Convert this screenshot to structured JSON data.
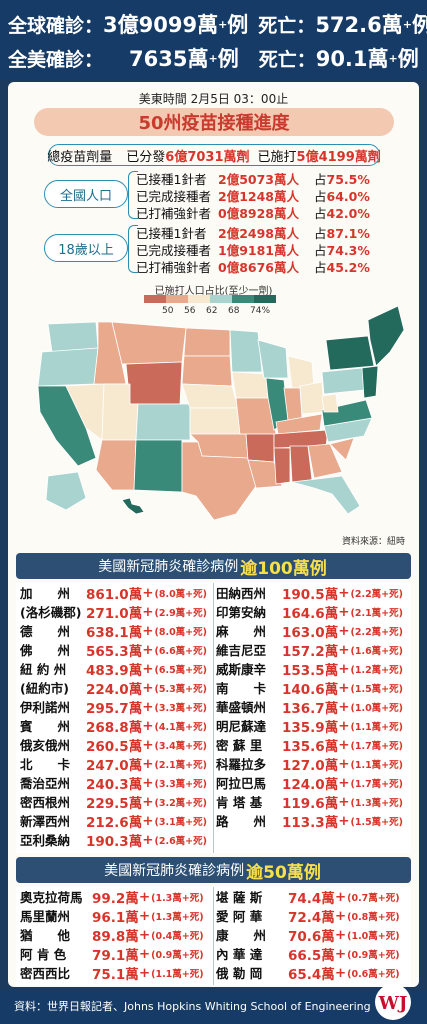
{
  "header": {
    "global_label": "全球確診：",
    "global_cases": "3億9099萬",
    "global_deaths_label": "死亡：",
    "global_deaths": "572.6萬",
    "us_label": "全美確診：",
    "us_cases": "7635萬",
    "us_deaths_label": "死亡：",
    "us_deaths": "90.1萬",
    "plus_suffix": "+例",
    "plus_sup": "+",
    "unit_suffix": "例"
  },
  "time_text": "美東時間  2月5日  03：00止",
  "vaccine_title": "50州疫苗接種進度",
  "total_doses": {
    "prefix": "總疫苗劑量",
    "dist_label": "已分發",
    "dist_value": "6億7031萬劑",
    "admin_label": "已施打",
    "admin_value": "5億4199萬劑"
  },
  "groups": [
    {
      "label": "全國人口",
      "rows": [
        {
          "label": "已接種1針者",
          "value": "2億5073萬人",
          "pct_label": "占",
          "pct": "75.5%"
        },
        {
          "label": "已完成接種者",
          "value": "2億1248萬人",
          "pct_label": "占",
          "pct": "64.0%"
        },
        {
          "label": "已打補強針者",
          "value": "0億8928萬人",
          "pct_label": "占",
          "pct": "42.0%"
        }
      ]
    },
    {
      "label": "18歲以上",
      "rows": [
        {
          "label": "已接種1針者",
          "value": "2億2498萬人",
          "pct_label": "占",
          "pct": "87.1%"
        },
        {
          "label": "已完成接種者",
          "value": "1億9181萬人",
          "pct_label": "占",
          "pct": "74.3%"
        },
        {
          "label": "已打補強針者",
          "value": "0億8676萬人",
          "pct_label": "占",
          "pct": "45.2%"
        }
      ]
    }
  ],
  "legend": {
    "title": "已施打人口占比(至少一劑)",
    "ticks": [
      "50",
      "56",
      "62",
      "68",
      "74%"
    ],
    "colors": [
      "#c96a5a",
      "#e8a98c",
      "#f6e9cf",
      "#a9d3cf",
      "#3a8a7a",
      "#23695c"
    ]
  },
  "map_source": "資料來源：紐時",
  "section1": {
    "pre": "美國新冠肺炎確診病例",
    "hl": "逾100萬例"
  },
  "section2": {
    "pre": "美國新冠肺炎確診病例",
    "hl": "逾50萬例"
  },
  "table1_left": [
    {
      "state": "加　　州",
      "cases": "861.0萬",
      "deaths": "(8.0萬+死)"
    },
    {
      "state": "(洛杉磯郡)",
      "cases": "271.0萬",
      "deaths": "(2.9萬+死)"
    },
    {
      "state": "德　　州",
      "cases": "638.1萬",
      "deaths": "(8.0萬+死)"
    },
    {
      "state": "佛　　州",
      "cases": "565.3萬",
      "deaths": "(6.6萬+死)"
    },
    {
      "state": "紐 約 州",
      "cases": "483.9萬",
      "deaths": "(6.5萬+死)"
    },
    {
      "state": "(紐約市)",
      "cases": "224.0萬",
      "deaths": "(5.3萬+死)"
    },
    {
      "state": "伊利諾州",
      "cases": "295.7萬",
      "deaths": "(3.3萬+死)"
    },
    {
      "state": "賓　　州",
      "cases": "268.8萬",
      "deaths": "(4.1萬+死)"
    },
    {
      "state": "俄亥俄州",
      "cases": "260.5萬",
      "deaths": "(3.4萬+死)"
    },
    {
      "state": "北　　卡",
      "cases": "247.0萬",
      "deaths": "(2.1萬+死)"
    },
    {
      "state": "喬治亞州",
      "cases": "240.3萬",
      "deaths": "(3.3萬+死)"
    },
    {
      "state": "密西根州",
      "cases": "229.5萬",
      "deaths": "(3.2萬+死)"
    },
    {
      "state": "新澤西州",
      "cases": "212.6萬",
      "deaths": "(3.1萬+死)"
    },
    {
      "state": "亞利桑納",
      "cases": "190.3萬",
      "deaths": "(2.6萬+死)"
    }
  ],
  "table1_right": [
    {
      "state": "田納西州",
      "cases": "190.5萬",
      "deaths": "(2.2萬+死)"
    },
    {
      "state": "印第安納",
      "cases": "164.6萬",
      "deaths": "(2.1萬+死)"
    },
    {
      "state": "麻　　州",
      "cases": "163.0萬",
      "deaths": "(2.2萬+死)"
    },
    {
      "state": "維吉尼亞",
      "cases": "157.2萬",
      "deaths": "(1.6萬+死)"
    },
    {
      "state": "威斯康辛",
      "cases": "153.5萬",
      "deaths": "(1.2萬+死)"
    },
    {
      "state": "南　　卡",
      "cases": "140.6萬",
      "deaths": "(1.5萬+死)"
    },
    {
      "state": "華盛頓州",
      "cases": "136.7萬",
      "deaths": "(1.0萬+死)"
    },
    {
      "state": "明尼蘇達",
      "cases": "135.9萬",
      "deaths": "(1.1萬+死)"
    },
    {
      "state": "密 蘇 里",
      "cases": "135.6萬",
      "deaths": "(1.7萬+死)"
    },
    {
      "state": "科羅拉多",
      "cases": "127.0萬",
      "deaths": "(1.1萬+死)"
    },
    {
      "state": "阿拉巴馬",
      "cases": "124.0萬",
      "deaths": "(1.7萬+死)"
    },
    {
      "state": "肯 塔 基",
      "cases": "119.6萬",
      "deaths": "(1.3萬+死)"
    },
    {
      "state": "路　　州",
      "cases": "113.3萬",
      "deaths": "(1.5萬+死)"
    }
  ],
  "table2_left": [
    {
      "state": "奧克拉荷馬",
      "cases": "99.2萬",
      "deaths": "(1.3萬+死)"
    },
    {
      "state": "馬里蘭州",
      "cases": "96.1萬",
      "deaths": "(1.3萬+死)"
    },
    {
      "state": "猶　　他",
      "cases": "89.8萬",
      "deaths": "(0.4萬+死)"
    },
    {
      "state": "阿 肯 色",
      "cases": "79.1萬",
      "deaths": "(0.9萬+死)"
    },
    {
      "state": "密西西比",
      "cases": "75.1萬",
      "deaths": "(1.1萬+死)"
    }
  ],
  "table2_right": [
    {
      "state": "堪 薩 斯",
      "cases": "74.4萬",
      "deaths": "(0.7萬+死)"
    },
    {
      "state": "愛 阿 華",
      "cases": "72.4萬",
      "deaths": "(0.8萬+死)"
    },
    {
      "state": "康　　州",
      "cases": "70.6萬",
      "deaths": "(1.0萬+死)"
    },
    {
      "state": "內 華 達",
      "cases": "66.5萬",
      "deaths": "(0.9萬+死)"
    },
    {
      "state": "俄 勒 岡",
      "cases": "65.4萬",
      "deaths": "(0.6萬+死)"
    }
  ],
  "footer": {
    "text": "資料：世界日報記者、Johns Hopkins  Whiting School of Engineering",
    "logo_letters": "WJ"
  }
}
